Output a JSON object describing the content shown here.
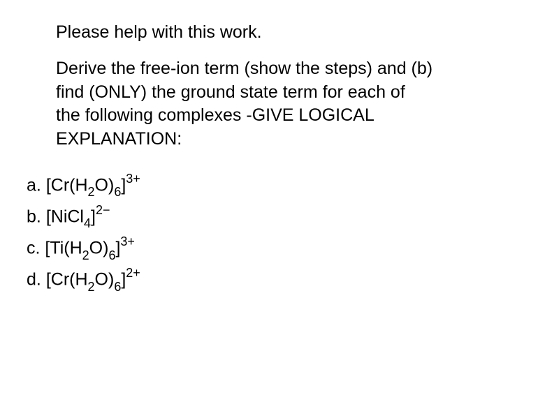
{
  "text_color": "#000000",
  "background_color": "#ffffff",
  "font_family": "Arial, Helvetica, sans-serif",
  "font_size_main": 25,
  "font_size_scripts_ratio": 0.72,
  "line_height": 1.35,
  "intro1": "Please help with this work.",
  "intro2": "Derive the free-ion term (show the steps) and (b) find (ONLY) the ground state term for each of the following complexes -GIVE LOGICAL EXPLANATION:",
  "items": [
    {
      "letter": "a.",
      "prefix": "[Cr(H",
      "sub1": "2",
      "mid1": "O)",
      "sub2": "6",
      "mid2": "]",
      "sup": "3+"
    },
    {
      "letter": "b.",
      "prefix": "[NiCl",
      "sub1": "4",
      "mid1": "]",
      "sub2": "",
      "mid2": "",
      "sup": "2−"
    },
    {
      "letter": "c.",
      "prefix": "[Ti(H",
      "sub1": "2",
      "mid1": "O)",
      "sub2": "6",
      "mid2": "]",
      "sup": "3+"
    },
    {
      "letter": "d.",
      "prefix": "[Cr(H",
      "sub1": "2",
      "mid1": "O)",
      "sub2": "6",
      "mid2": "]",
      "sup": "2+"
    }
  ]
}
